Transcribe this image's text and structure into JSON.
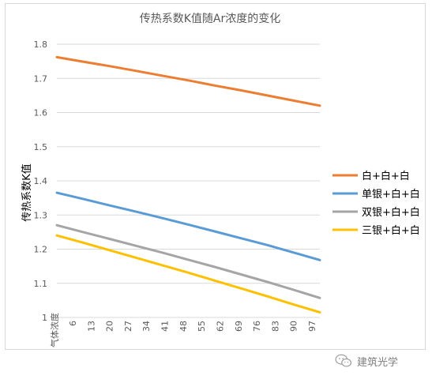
{
  "chart_data": {
    "type": "line",
    "title": "传热系数K值随Ar浓度的变化",
    "ylabel": "传热系数K值",
    "xlabel": "气体浓度",
    "x_ticks": [
      "6",
      "13",
      "20",
      "27",
      "34",
      "41",
      "48",
      "55",
      "62",
      "69",
      "76",
      "83",
      "90",
      "97"
    ],
    "x_range": [
      0,
      100
    ],
    "y_ticks": [
      "1",
      "1.1",
      "1.2",
      "1.3",
      "1.4",
      "1.5",
      "1.6",
      "1.7",
      "1.8"
    ],
    "ylim": [
      1,
      1.8
    ],
    "grid": true,
    "legend_position": "right",
    "series": [
      {
        "name": "白+白+白",
        "color": "#ED7D31",
        "x": [
          0,
          10,
          20,
          30,
          40,
          50,
          60,
          70,
          80,
          90,
          100
        ],
        "y": [
          1.762,
          1.749,
          1.736,
          1.722,
          1.708,
          1.694,
          1.679,
          1.665,
          1.65,
          1.635,
          1.62
        ]
      },
      {
        "name": "单银+白+白",
        "color": "#5B9BD5",
        "x": [
          0,
          10,
          20,
          30,
          40,
          50,
          60,
          70,
          80,
          90,
          100
        ],
        "y": [
          1.365,
          1.347,
          1.328,
          1.31,
          1.291,
          1.272,
          1.252,
          1.232,
          1.212,
          1.19,
          1.168
        ]
      },
      {
        "name": "双银+白+白",
        "color": "#A5A5A5",
        "x": [
          0,
          10,
          20,
          30,
          40,
          50,
          60,
          70,
          80,
          90,
          100
        ],
        "y": [
          1.27,
          1.25,
          1.23,
          1.21,
          1.19,
          1.169,
          1.148,
          1.126,
          1.104,
          1.081,
          1.057
        ]
      },
      {
        "name": "三银+白+白",
        "color": "#FFC000",
        "x": [
          0,
          10,
          20,
          30,
          40,
          50,
          60,
          70,
          80,
          90,
          100
        ],
        "y": [
          1.24,
          1.219,
          1.197,
          1.175,
          1.153,
          1.131,
          1.108,
          1.085,
          1.062,
          1.038,
          1.015
        ]
      }
    ]
  },
  "watermark": {
    "icon": "wechat-icon",
    "text": "建筑光学"
  }
}
